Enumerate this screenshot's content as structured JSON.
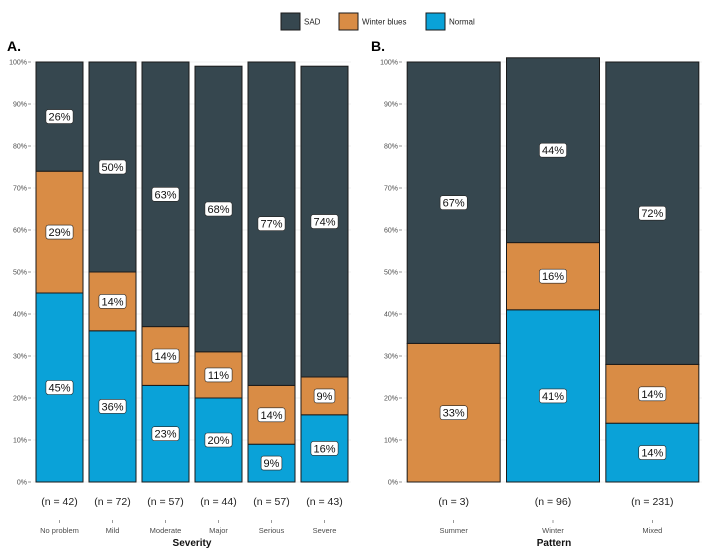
{
  "chart_data": [
    {
      "type": "bar",
      "stacked": true,
      "panel_tag": "A.",
      "xlabel": "Severity",
      "ylabel": "",
      "ylim": [
        0,
        100
      ],
      "yticks": [
        "0%",
        "10%",
        "20%",
        "30%",
        "40%",
        "50%",
        "60%",
        "70%",
        "80%",
        "90%",
        "100%"
      ],
      "categories": [
        "No problem",
        "Mild",
        "Moderate",
        "Major",
        "Serious",
        "Severe"
      ],
      "n_labels": [
        "(n = 42)",
        "(n = 72)",
        "(n = 57)",
        "(n = 44)",
        "(n = 57)",
        "(n = 43)"
      ],
      "series": [
        {
          "name": "Normal",
          "values": [
            45,
            36,
            23,
            20,
            9,
            16
          ],
          "labels": [
            "45%",
            "36%",
            "23%",
            "20%",
            "9%",
            "16%"
          ]
        },
        {
          "name": "Winter blues",
          "values": [
            29,
            14,
            14,
            11,
            14,
            9
          ],
          "labels": [
            "29%",
            "14%",
            "14%",
            "11%",
            "14%",
            "9%"
          ]
        },
        {
          "name": "SAD",
          "values": [
            26,
            50,
            63,
            68,
            77,
            74
          ],
          "labels": [
            "26%",
            "50%",
            "63%",
            "68%",
            "77%",
            "74%"
          ]
        }
      ]
    },
    {
      "type": "bar",
      "stacked": true,
      "panel_tag": "B.",
      "xlabel": "Pattern",
      "ylabel": "",
      "ylim": [
        0,
        100
      ],
      "yticks": [
        "0%",
        "10%",
        "20%",
        "30%",
        "40%",
        "50%",
        "60%",
        "70%",
        "80%",
        "90%",
        "100%"
      ],
      "categories": [
        "Summer",
        "Winter",
        "Mixed"
      ],
      "n_labels": [
        "(n = 3)",
        "(n = 96)",
        "(n = 231)"
      ],
      "series": [
        {
          "name": "Normal",
          "values": [
            0,
            41,
            14
          ],
          "labels": [
            "",
            "41%",
            "14%"
          ]
        },
        {
          "name": "Winter blues",
          "values": [
            33,
            16,
            14
          ],
          "labels": [
            "33%",
            "16%",
            "14%"
          ]
        },
        {
          "name": "SAD",
          "values": [
            67,
            44,
            72
          ],
          "labels": [
            "67%",
            "44%",
            "72%"
          ]
        }
      ]
    }
  ],
  "legend": {
    "position": "top-center",
    "items": [
      {
        "name": "SAD",
        "color": "#36474f"
      },
      {
        "name": "Winter blues",
        "color": "#d98c45"
      },
      {
        "name": "Normal",
        "color": "#0aa2d8"
      }
    ]
  }
}
